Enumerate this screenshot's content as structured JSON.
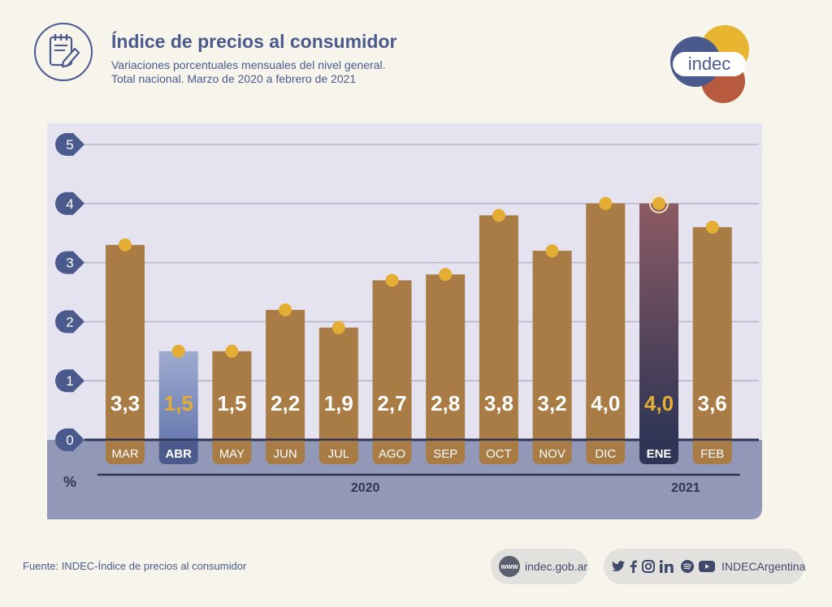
{
  "header": {
    "title": "Índice de precios al consumidor",
    "subtitle_line1": "Variaciones porcentuales mensuales del nivel general.",
    "subtitle_line2": "Total nacional. Marzo de 2020 a febrero de 2021"
  },
  "logo": {
    "text": "indec",
    "colors": [
      "#e8b530",
      "#4a5a8c",
      "#b85a3e"
    ]
  },
  "chart_data": {
    "type": "bar",
    "categories": [
      "MAR",
      "ABR",
      "MAY",
      "JUN",
      "JUL",
      "AGO",
      "SEP",
      "OCT",
      "NOV",
      "DIC",
      "ENE",
      "FEB"
    ],
    "values": [
      3.3,
      1.5,
      1.5,
      2.2,
      1.9,
      2.7,
      2.8,
      3.8,
      3.2,
      4.0,
      4.0,
      3.6
    ],
    "value_labels": [
      "3,3",
      "1,5",
      "1,5",
      "2,2",
      "1,9",
      "2,7",
      "2,8",
      "3,8",
      "3,2",
      "4,0",
      "4,0",
      "3,6"
    ],
    "highlighted": [
      "ABR",
      "ENE"
    ],
    "ylim": [
      0,
      5
    ],
    "yticks": [
      "0",
      "1",
      "2",
      "3",
      "4",
      "5"
    ],
    "ylabel": "%",
    "year_groups": [
      {
        "label": "2020",
        "from": "MAR",
        "to": "DIC"
      },
      {
        "label": "2021",
        "from": "ENE",
        "to": "FEB"
      }
    ],
    "grid": true,
    "colors": {
      "bar": "#a97b45",
      "dot": "#e4ad33",
      "abr_bar_top": "#9eabd0",
      "abr_bar_bottom": "#6a7bb0",
      "ene_bar_top": "#8c5a63",
      "ene_bar_bottom": "#2e3555",
      "plot_bg": "#e6e3f1",
      "base_bg": "#9298b8",
      "axis_badge": "#4a5a8c",
      "highlight_text": "#e4ad33"
    }
  },
  "footer": {
    "source": "Fuente: INDEC-Índice de precios al consumidor",
    "www_badge": "www",
    "website": "indec.gob.ar",
    "social_handle": "INDECArgentina",
    "social_icons": [
      "twitter-icon",
      "facebook-icon",
      "instagram-icon",
      "linkedin-icon",
      "spotify-icon",
      "youtube-icon"
    ]
  }
}
